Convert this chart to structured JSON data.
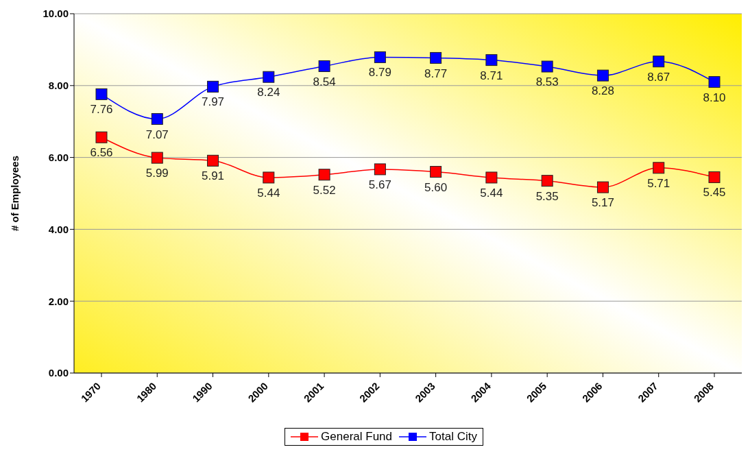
{
  "chart_data": {
    "type": "line",
    "ylabel": "# of Employees",
    "categories": [
      "1970",
      "1980",
      "1990",
      "2000",
      "2001",
      "2002",
      "2003",
      "2004",
      "2005",
      "2006",
      "2007",
      "2008"
    ],
    "series": [
      {
        "name": "General Fund",
        "color": "#ff0000",
        "values": [
          6.56,
          5.99,
          5.91,
          5.44,
          5.52,
          5.67,
          5.6,
          5.44,
          5.35,
          5.17,
          5.71,
          5.45
        ],
        "value_labels": [
          "6.56",
          "5.99",
          "5.91",
          "5.44",
          "5.52",
          "5.67",
          "5.60",
          "5.44",
          "5.35",
          "5.17",
          "5.71",
          "5.45"
        ]
      },
      {
        "name": "Total City",
        "color": "#0000ff",
        "values": [
          7.76,
          7.07,
          7.97,
          8.24,
          8.54,
          8.79,
          8.77,
          8.71,
          8.53,
          8.28,
          8.67,
          8.1
        ],
        "value_labels": [
          "7.76",
          "7.07",
          "7.97",
          "8.24",
          "8.54",
          "8.79",
          "8.77",
          "8.71",
          "8.53",
          "8.28",
          "8.67",
          "8.10"
        ]
      }
    ],
    "ylim": [
      0,
      10
    ],
    "yticks": [
      {
        "value": 0,
        "label": "0.00"
      },
      {
        "value": 2,
        "label": "2.00"
      },
      {
        "value": 4,
        "label": "4.00"
      },
      {
        "value": 6,
        "label": "6.00"
      },
      {
        "value": 8,
        "label": "8.00"
      },
      {
        "value": 10,
        "label": "10.00"
      }
    ],
    "grid": "y",
    "legend": "bottom",
    "marker": "square",
    "line_style": "solid"
  }
}
